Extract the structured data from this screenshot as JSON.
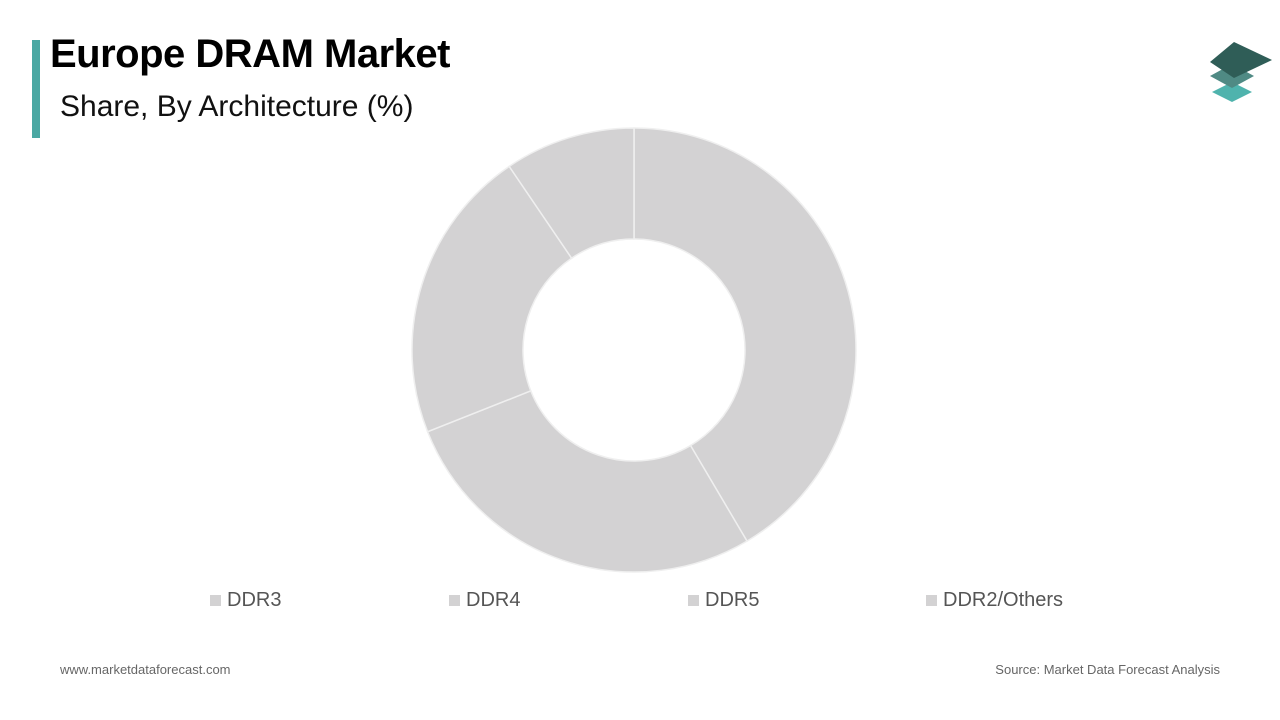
{
  "header": {
    "title": "Europe DRAM Market",
    "subtitle": "Share, By Architecture (%)"
  },
  "colors": {
    "accent": "#4aa8a3",
    "slice_fill": "#d3d2d3",
    "slice_stroke": "#efefef",
    "logo_dark": "#2f5d57",
    "logo_mid": "#4f8a84",
    "logo_light": "#4fb3ad"
  },
  "logo": {
    "icon": "stacked-layers-logo-icon"
  },
  "chart_data": {
    "type": "pie",
    "donut": true,
    "title": "Europe DRAM Market",
    "subtitle": "Share, By Architecture (%)",
    "categories": [
      "DDR3",
      "DDR4",
      "DDR5",
      "DDR2/Others"
    ],
    "values": [
      41.5,
      27.5,
      21.5,
      9.5
    ],
    "start_angle_deg": 0,
    "direction": "clockwise",
    "legend_position": "bottom",
    "data_labels": false
  },
  "footer": {
    "website": "www.marketdataforecast.com",
    "source": "Source: Market Data Forecast Analysis"
  }
}
